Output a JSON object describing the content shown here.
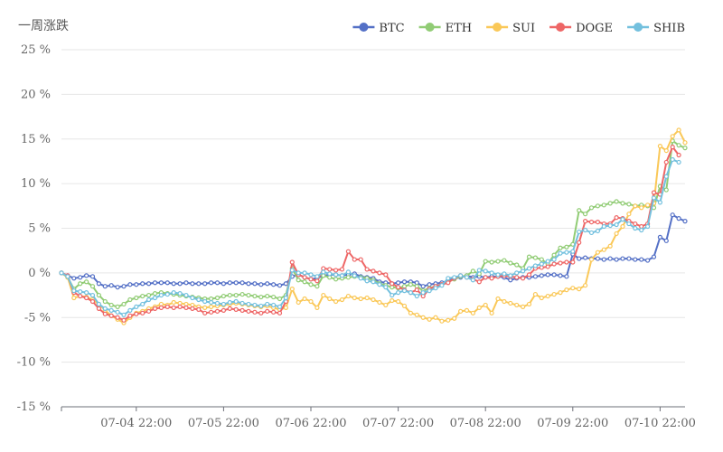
{
  "chart_data": {
    "type": "line",
    "title": "一周涨跌",
    "ylim": [
      -15,
      25
    ],
    "y_ticks": [
      -15,
      -10,
      -5,
      0,
      5,
      10,
      15,
      20,
      25
    ],
    "y_tick_labels": [
      "-15 %",
      "-10 %",
      "-5 %",
      "0 %",
      "5 %",
      "10 %",
      "15 %",
      "20 %",
      "25 %"
    ],
    "x_tick_labels": [
      "07-04 22:00",
      "07-05 22:00",
      "07-06 22:00",
      "07-07 22:00",
      "07-08 22:00",
      "07-09 22:00",
      "07-10 22:00"
    ],
    "grid": true,
    "legend_position": "top-right",
    "series": [
      {
        "name": "BTC",
        "color": "#5470c6",
        "values": [
          0,
          -0.3,
          -0.6,
          -0.5,
          -0.3,
          -0.4,
          -1.2,
          -1.5,
          -1.4,
          -1.6,
          -1.5,
          -1.3,
          -1.3,
          -1.2,
          -1.2,
          -1.1,
          -1.1,
          -1.1,
          -1.2,
          -1.2,
          -1.1,
          -1.2,
          -1.2,
          -1.2,
          -1.1,
          -1.1,
          -1.2,
          -1.1,
          -1.1,
          -1.1,
          -1.2,
          -1.2,
          -1.3,
          -1.2,
          -1.3,
          -1.4,
          -1.2,
          -0.4,
          -0.2,
          -0.5,
          -0.7,
          -0.6,
          -0.3,
          -0.2,
          -0.2,
          -0.3,
          -0.2,
          -0.1,
          -0.4,
          -0.5,
          -0.6,
          -1.0,
          -1.1,
          -1.2,
          -1.1,
          -1.0,
          -1.0,
          -1.1,
          -1.5,
          -1.3,
          -1.2,
          -1.1,
          -0.9,
          -0.6,
          -0.5,
          -0.3,
          -0.5,
          -0.4,
          -0.5,
          -0.4,
          -0.4,
          -0.5,
          -0.8,
          -0.6,
          -0.5,
          -0.5,
          -0.4,
          -0.3,
          -0.2,
          -0.2,
          -0.3,
          -0.4,
          2.1,
          1.6,
          1.7,
          1.6,
          1.6,
          1.5,
          1.6,
          1.5,
          1.6,
          1.6,
          1.5,
          1.5,
          1.4,
          1.8,
          4.0,
          3.6,
          6.5,
          6.1,
          5.8
        ]
      },
      {
        "name": "ETH",
        "color": "#91cc75",
        "values": [
          0,
          -0.5,
          -1.8,
          -1.2,
          -1.0,
          -1.5,
          -2.5,
          -3.2,
          -3.6,
          -3.8,
          -3.5,
          -3.0,
          -2.8,
          -2.6,
          -2.5,
          -2.3,
          -2.2,
          -2.3,
          -2.4,
          -2.5,
          -2.6,
          -2.7,
          -2.8,
          -2.9,
          -2.9,
          -2.8,
          -2.6,
          -2.5,
          -2.5,
          -2.4,
          -2.5,
          -2.6,
          -2.7,
          -2.6,
          -2.7,
          -2.9,
          -2.5,
          0.5,
          -0.8,
          -1.0,
          -1.3,
          -1.5,
          -0.3,
          -0.5,
          -0.7,
          -0.6,
          -0.5,
          -0.4,
          -0.5,
          -0.6,
          -0.8,
          -1.2,
          -1.4,
          -1.6,
          -1.7,
          -1.5,
          -1.3,
          -1.5,
          -2.0,
          -1.7,
          -1.5,
          -1.3,
          -1.0,
          -0.7,
          -0.4,
          -0.3,
          0.2,
          -0.1,
          1.3,
          1.2,
          1.3,
          1.4,
          1.1,
          0.9,
          0.5,
          1.8,
          1.7,
          1.5,
          1.0,
          2.0,
          2.8,
          2.9,
          3.2,
          7.0,
          6.6,
          7.3,
          7.5,
          7.6,
          7.8,
          8.0,
          7.8,
          7.7,
          7.5,
          7.6,
          7.5,
          7.3,
          9.7,
          9.3,
          14.8,
          14.3,
          14.0
        ]
      },
      {
        "name": "SUI",
        "color": "#fac858",
        "values": [
          0,
          -0.5,
          -2.8,
          -2.6,
          -2.7,
          -3.0,
          -3.5,
          -4.2,
          -4.8,
          -5.2,
          -5.6,
          -5.0,
          -4.5,
          -4.3,
          -4.0,
          -3.8,
          -3.5,
          -3.6,
          -3.3,
          -3.4,
          -3.5,
          -3.6,
          -3.8,
          -3.9,
          -3.8,
          -3.7,
          -3.6,
          -3.5,
          -3.4,
          -3.5,
          -3.6,
          -3.7,
          -3.8,
          -3.7,
          -3.9,
          -4.1,
          -3.9,
          -1.8,
          -3.3,
          -2.9,
          -3.2,
          -3.9,
          -2.5,
          -2.9,
          -3.2,
          -3.0,
          -2.6,
          -2.8,
          -2.9,
          -2.8,
          -3.0,
          -3.3,
          -3.6,
          -3.1,
          -3.2,
          -3.7,
          -4.5,
          -4.7,
          -5.0,
          -5.2,
          -5.0,
          -5.4,
          -5.3,
          -5.1,
          -4.3,
          -4.2,
          -4.5,
          -3.9,
          -3.6,
          -4.5,
          -2.9,
          -3.2,
          -3.4,
          -3.6,
          -3.8,
          -3.5,
          -2.4,
          -2.8,
          -2.6,
          -2.4,
          -2.2,
          -1.9,
          -1.7,
          -1.8,
          -1.4,
          1.5,
          2.3,
          2.6,
          3.0,
          4.4,
          5.2,
          6.6,
          7.5,
          7.3,
          7.6,
          7.8,
          14.2,
          13.7,
          15.3,
          16.0,
          14.6
        ]
      },
      {
        "name": "DOGE",
        "color": "#ee6666",
        "values": [
          0,
          -0.3,
          -2.2,
          -2.6,
          -2.8,
          -3.2,
          -4.0,
          -4.6,
          -4.8,
          -5.0,
          -5.3,
          -4.8,
          -4.6,
          -4.5,
          -4.3,
          -4.0,
          -3.9,
          -3.8,
          -3.9,
          -3.8,
          -3.9,
          -4.0,
          -4.1,
          -4.5,
          -4.4,
          -4.3,
          -4.2,
          -4.0,
          -4.1,
          -4.2,
          -4.3,
          -4.4,
          -4.5,
          -4.3,
          -4.4,
          -4.5,
          -3.2,
          1.2,
          -0.2,
          -0.5,
          -0.7,
          -0.9,
          0.5,
          0.4,
          0.3,
          0.4,
          2.4,
          1.5,
          1.5,
          0.4,
          0.2,
          0.0,
          -0.2,
          -1.2,
          -1.6,
          -1.9,
          -2.2,
          -1.9,
          -2.6,
          -1.8,
          -1.5,
          -1.3,
          -1.1,
          -0.6,
          -0.3,
          -0.5,
          -0.7,
          -1.0,
          -0.5,
          -0.6,
          -0.4,
          -0.3,
          -0.4,
          -0.5,
          -0.6,
          -0.2,
          0.5,
          0.6,
          0.7,
          1.0,
          1.1,
          1.2,
          1.2,
          3.4,
          5.8,
          5.7,
          5.7,
          5.5,
          5.5,
          6.2,
          6.1,
          5.8,
          5.5,
          5.2,
          5.5,
          9.0,
          8.8,
          12.4,
          14.1,
          13.2
        ]
      },
      {
        "name": "SHIB",
        "color": "#73c0de",
        "values": [
          0,
          -0.4,
          -2.0,
          -2.1,
          -2.2,
          -2.5,
          -3.5,
          -4.0,
          -4.2,
          -4.4,
          -4.7,
          -4.2,
          -3.8,
          -3.5,
          -3.0,
          -2.8,
          -2.5,
          -2.4,
          -2.2,
          -2.3,
          -2.5,
          -2.8,
          -3.0,
          -3.2,
          -3.3,
          -3.4,
          -3.5,
          -3.3,
          -3.2,
          -3.4,
          -3.5,
          -3.6,
          -3.7,
          -3.5,
          -3.6,
          -3.8,
          -2.8,
          0.3,
          0.0,
          0.0,
          -0.2,
          -0.4,
          0.1,
          -0.1,
          -0.2,
          -0.3,
          0.1,
          -0.3,
          -0.6,
          -0.9,
          -1.0,
          -1.3,
          -1.6,
          -2.5,
          -2.2,
          -2.0,
          -2.2,
          -2.6,
          -2.2,
          -2.0,
          -1.7,
          -1.4,
          -0.6,
          -0.5,
          -0.3,
          -0.5,
          -0.8,
          0.3,
          0.2,
          0.0,
          -0.2,
          -0.1,
          -0.3,
          0.0,
          0.2,
          0.5,
          0.8,
          1.0,
          1.3,
          1.5,
          2.2,
          2.3,
          2.4,
          4.6,
          4.8,
          4.5,
          4.7,
          5.2,
          5.3,
          5.4,
          6.0,
          5.5,
          5.0,
          4.8,
          5.2,
          8.4,
          7.9,
          10.8,
          12.7,
          12.4
        ]
      }
    ]
  }
}
